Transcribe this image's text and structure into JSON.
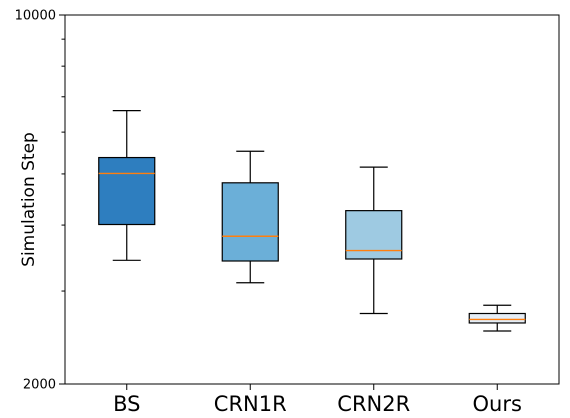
{
  "chart_data": {
    "type": "box",
    "title": "",
    "xlabel": "",
    "ylabel": "Simulation Step",
    "y_scale": "log",
    "ylim": [
      2000,
      10000
    ],
    "y_tick_labels": [
      {
        "value": 10000,
        "label": "10000"
      },
      {
        "value": 2000,
        "label": "2000"
      }
    ],
    "y_minor_ticks": [
      3000,
      4000,
      5000,
      6000,
      7000,
      8000,
      9000
    ],
    "grid": false,
    "legend": "none",
    "categories": [
      "BS",
      "CRN1R",
      "CRN2R",
      "Ours"
    ],
    "boxes": [
      {
        "name": "BS",
        "whisker_low": 3430,
        "q1": 4010,
        "median": 5010,
        "q3": 5370,
        "whisker_high": 6590,
        "color": "#2e7ebf"
      },
      {
        "name": "CRN1R",
        "whisker_low": 3110,
        "q1": 3420,
        "median": 3810,
        "q3": 4810,
        "whisker_high": 5520,
        "color": "#6bafd8"
      },
      {
        "name": "CRN2R",
        "whisker_low": 2720,
        "q1": 3450,
        "median": 3580,
        "q3": 4260,
        "whisker_high": 5150,
        "color": "#9ecae2"
      },
      {
        "name": "Ours",
        "whisker_low": 2520,
        "q1": 2610,
        "median": 2650,
        "q3": 2720,
        "whisker_high": 2820,
        "color": "#e4edf6"
      }
    ],
    "median_color": "#ff7f0e"
  }
}
